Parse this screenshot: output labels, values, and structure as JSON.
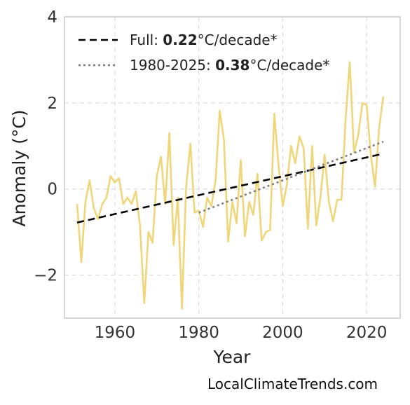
{
  "chart_data": {
    "type": "line",
    "xlabel": "Year",
    "ylabel": "Anomaly (°C)",
    "xlim": [
      1948,
      2028
    ],
    "ylim": [
      -3,
      4
    ],
    "x_ticks": [
      1960,
      1980,
      2000,
      2020
    ],
    "y_ticks": [
      4,
      2,
      0,
      -2
    ],
    "x_tick_labels": [
      "1960",
      "1980",
      "2000",
      "2020"
    ],
    "y_tick_labels": [
      "4",
      "2",
      "0",
      "−2"
    ],
    "grid": true,
    "legend_position": "top-left",
    "series": [
      {
        "style": "solid",
        "color": "#f0d67a",
        "x": [
          1951,
          1952,
          1953,
          1954,
          1955,
          1956,
          1957,
          1958,
          1959,
          1960,
          1961,
          1962,
          1963,
          1964,
          1965,
          1966,
          1967,
          1968,
          1969,
          1970,
          1971,
          1972,
          1973,
          1974,
          1975,
          1976,
          1977,
          1978,
          1979,
          1980,
          1981,
          1982,
          1983,
          1984,
          1985,
          1986,
          1987,
          1988,
          1989,
          1990,
          1991,
          1992,
          1993,
          1994,
          1995,
          1996,
          1997,
          1998,
          1999,
          2000,
          2001,
          2002,
          2003,
          2004,
          2005,
          2006,
          2007,
          2008,
          2009,
          2010,
          2011,
          2012,
          2013,
          2014,
          2015,
          2016,
          2017,
          2018,
          2019,
          2020,
          2021,
          2022,
          2023,
          2024
        ],
        "y": [
          -0.35,
          -1.7,
          -0.3,
          0.2,
          -0.45,
          -0.7,
          -0.35,
          -0.2,
          0.3,
          0.15,
          0.25,
          -0.35,
          -0.2,
          -0.35,
          -0.05,
          -0.85,
          -2.65,
          -1.0,
          -1.25,
          0.3,
          0.75,
          -0.35,
          1.3,
          -1.3,
          -0.2,
          -2.78,
          0.05,
          1.05,
          -0.55,
          -0.5,
          -0.88,
          -0.2,
          -0.4,
          0.2,
          1.82,
          1.15,
          -1.22,
          -0.3,
          -0.8,
          0.67,
          -1.1,
          -0.3,
          -0.6,
          0.35,
          -1.2,
          -1.0,
          -0.95,
          1.75,
          0.55,
          -0.4,
          0.1,
          1.0,
          0.6,
          1.22,
          0.95,
          -0.92,
          1.0,
          -0.85,
          -0.2,
          0.8,
          -0.3,
          -0.75,
          -0.25,
          -0.25,
          1.65,
          2.95,
          0.85,
          1.25,
          2.0,
          1.95,
          0.8,
          0.05,
          1.45,
          2.15
        ]
      },
      {
        "name": "Full",
        "style": "dashed",
        "color": "#000000",
        "x": [
          1951,
          2024
        ],
        "y": [
          -0.78,
          0.82
        ]
      },
      {
        "name": "1980-2025",
        "style": "dotted",
        "color": "#808080",
        "x": [
          1980,
          2024
        ],
        "y": [
          -0.55,
          1.1
        ]
      }
    ],
    "legend": [
      {
        "prefix": "Full: ",
        "value": "0.22",
        "suffix": "°C/decade*",
        "style": "dashed",
        "color": "#000000"
      },
      {
        "prefix": "1980-2025: ",
        "value": "0.38",
        "suffix": "°C/decade*",
        "style": "dotted",
        "color": "#808080"
      }
    ]
  },
  "source_text": "LocalClimateTrends.com"
}
